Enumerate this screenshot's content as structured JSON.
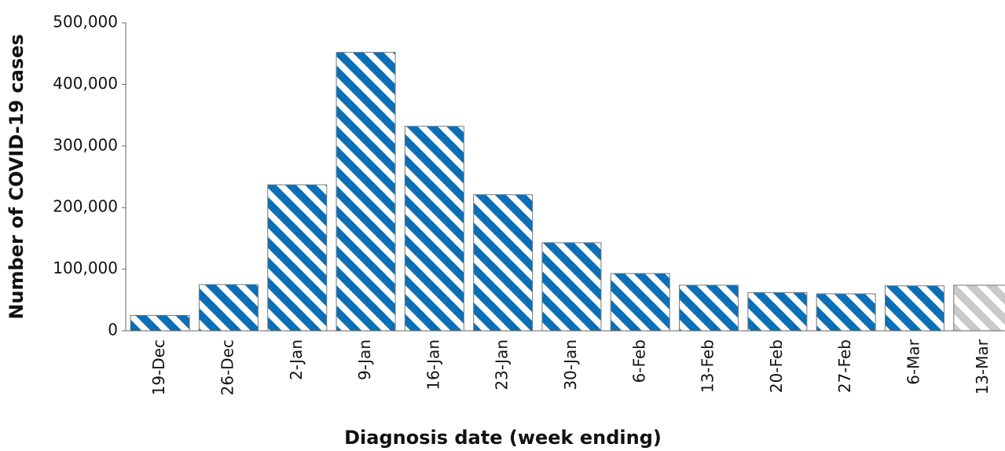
{
  "chart_data": {
    "type": "bar",
    "x_label": "Diagnosis date (week ending)",
    "y_label": "Number of COVID-19 cases",
    "categories": [
      "19-Dec",
      "26-Dec",
      "2-Jan",
      "9-Jan",
      "16-Jan",
      "23-Jan",
      "30-Jan",
      "6-Feb",
      "13-Feb",
      "20-Feb",
      "27-Feb",
      "6-Mar",
      "13-Mar"
    ],
    "values": [
      25000,
      75000,
      237000,
      452000,
      332000,
      221000,
      143000,
      93000,
      74000,
      62000,
      60000,
      73000,
      74000
    ],
    "colors": [
      "#0a6fb6",
      "#0a6fb6",
      "#0a6fb6",
      "#0a6fb6",
      "#0a6fb6",
      "#0a6fb6",
      "#0a6fb6",
      "#0a6fb6",
      "#0a6fb6",
      "#0a6fb6",
      "#0a6fb6",
      "#0a6fb6",
      "#c9c9c9"
    ],
    "ylim": [
      0,
      500000
    ],
    "yticks": [
      0,
      {
        "value": 100000,
        "label": "100,000"
      },
      {
        "value": 200000,
        "label": "200,000"
      },
      {
        "value": 300000,
        "label": "300,000"
      },
      {
        "value": 400000,
        "label": "400,000"
      },
      {
        "value": 500000,
        "label": "500,000"
      }
    ],
    "grid": false
  }
}
